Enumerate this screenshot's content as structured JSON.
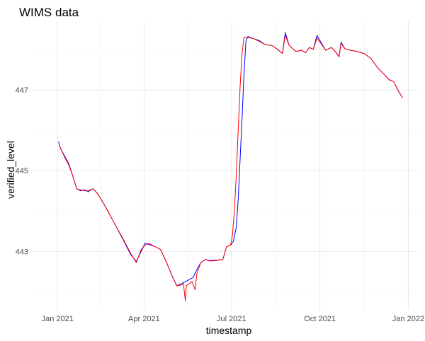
{
  "chart_data": {
    "type": "line",
    "title": "WIMS data",
    "xlabel": "timestamp",
    "ylabel": "verified_level",
    "x_axis": {
      "type": "date",
      "range": [
        "2020-12-06",
        "2022-01-11"
      ],
      "ticks": [
        {
          "date": "2021-01-01",
          "label": "Jan 2021"
        },
        {
          "date": "2021-04-01",
          "label": "Apr 2021"
        },
        {
          "date": "2021-07-01",
          "label": "Jul 2021"
        },
        {
          "date": "2021-10-01",
          "label": "Oct 2021"
        },
        {
          "date": "2022-01-01",
          "label": "Jan 2022"
        }
      ]
    },
    "y_axis": {
      "range": [
        441.55,
        448.7
      ],
      "ticks": [
        443,
        445,
        447
      ],
      "minor_ticks": [
        442,
        444,
        446,
        448
      ]
    },
    "grid": true,
    "legend": "none",
    "series": [
      {
        "color": "#0000ff",
        "points": [
          [
            "2021-01-02",
            445.72
          ],
          [
            "2021-01-04",
            445.55
          ],
          [
            "2021-01-08",
            445.38
          ],
          [
            "2021-01-13",
            445.15
          ],
          [
            "2021-01-17",
            444.85
          ],
          [
            "2021-01-21",
            444.55
          ],
          [
            "2021-01-25",
            444.5
          ],
          [
            "2021-01-29",
            444.52
          ],
          [
            "2021-02-02",
            444.48
          ],
          [
            "2021-02-07",
            444.55
          ],
          [
            "2021-02-12",
            444.42
          ],
          [
            "2021-02-20",
            444.1
          ],
          [
            "2021-03-01",
            443.7
          ],
          [
            "2021-03-10",
            443.3
          ],
          [
            "2021-03-18",
            442.92
          ],
          [
            "2021-03-24",
            442.75
          ],
          [
            "2021-03-29",
            443.0
          ],
          [
            "2021-04-02",
            443.2
          ],
          [
            "2021-04-06",
            443.17
          ],
          [
            "2021-04-12",
            443.12
          ],
          [
            "2021-04-18",
            443.05
          ],
          [
            "2021-04-24",
            442.75
          ],
          [
            "2021-04-30",
            442.4
          ],
          [
            "2021-05-05",
            442.15
          ],
          [
            "2021-05-10",
            442.2
          ],
          [
            "2021-05-14",
            442.25
          ],
          [
            "2021-05-18",
            442.3
          ],
          [
            "2021-05-22",
            442.35
          ],
          [
            "2021-05-26",
            442.55
          ],
          [
            "2021-05-30",
            442.72
          ],
          [
            "2021-06-04",
            442.8
          ],
          [
            "2021-06-08",
            442.77
          ],
          [
            "2021-06-15",
            442.78
          ],
          [
            "2021-06-22",
            442.8
          ],
          [
            "2021-06-26",
            443.12
          ],
          [
            "2021-06-30",
            443.15
          ],
          [
            "2021-07-03",
            443.25
          ],
          [
            "2021-07-06",
            443.6
          ],
          [
            "2021-07-08",
            444.3
          ],
          [
            "2021-07-10",
            445.3
          ],
          [
            "2021-07-12",
            446.3
          ],
          [
            "2021-07-14",
            447.4
          ],
          [
            "2021-07-16",
            448.2
          ],
          [
            "2021-07-18",
            448.32
          ],
          [
            "2021-07-24",
            448.27
          ],
          [
            "2021-07-30",
            448.22
          ],
          [
            "2021-08-05",
            448.12
          ],
          [
            "2021-08-12",
            448.1
          ],
          [
            "2021-08-18",
            448.0
          ],
          [
            "2021-08-23",
            447.9
          ],
          [
            "2021-08-26",
            448.42
          ],
          [
            "2021-08-30",
            448.1
          ],
          [
            "2021-09-06",
            447.95
          ],
          [
            "2021-09-12",
            447.98
          ],
          [
            "2021-09-16",
            447.92
          ],
          [
            "2021-09-20",
            448.05
          ],
          [
            "2021-09-24",
            448.0
          ],
          [
            "2021-09-28",
            448.35
          ],
          [
            "2021-10-02",
            448.18
          ],
          [
            "2021-10-07",
            447.98
          ],
          [
            "2021-10-13",
            448.05
          ],
          [
            "2021-10-17",
            447.95
          ],
          [
            "2021-10-21",
            447.82
          ],
          [
            "2021-10-23",
            448.18
          ],
          [
            "2021-10-27",
            448.02
          ],
          [
            "2021-11-02",
            447.98
          ],
          [
            "2021-11-09",
            447.95
          ],
          [
            "2021-11-16",
            447.9
          ],
          [
            "2021-11-23",
            447.78
          ],
          [
            "2021-11-30",
            447.55
          ],
          [
            "2021-12-07",
            447.38
          ],
          [
            "2021-12-12",
            447.25
          ],
          [
            "2021-12-17",
            447.2
          ],
          [
            "2021-12-21",
            447.0
          ],
          [
            "2021-12-26",
            446.8
          ]
        ]
      },
      {
        "color": "#ff0000",
        "points": [
          [
            "2021-01-03",
            445.62
          ],
          [
            "2021-01-08",
            445.35
          ],
          [
            "2021-01-13",
            445.12
          ],
          [
            "2021-01-17",
            444.85
          ],
          [
            "2021-01-21",
            444.55
          ],
          [
            "2021-01-25",
            444.52
          ],
          [
            "2021-01-29",
            444.5
          ],
          [
            "2021-02-02",
            444.5
          ],
          [
            "2021-02-07",
            444.55
          ],
          [
            "2021-02-12",
            444.42
          ],
          [
            "2021-02-20",
            444.1
          ],
          [
            "2021-03-01",
            443.7
          ],
          [
            "2021-03-10",
            443.32
          ],
          [
            "2021-03-18",
            442.95
          ],
          [
            "2021-03-24",
            442.72
          ],
          [
            "2021-03-29",
            443.05
          ],
          [
            "2021-04-02",
            443.15
          ],
          [
            "2021-04-06",
            443.2
          ],
          [
            "2021-04-12",
            443.12
          ],
          [
            "2021-04-18",
            443.05
          ],
          [
            "2021-04-24",
            442.75
          ],
          [
            "2021-04-30",
            442.4
          ],
          [
            "2021-05-05",
            442.15
          ],
          [
            "2021-05-08",
            442.15
          ],
          [
            "2021-05-12",
            442.2
          ],
          [
            "2021-05-14",
            441.77
          ],
          [
            "2021-05-15",
            442.15
          ],
          [
            "2021-05-18",
            442.2
          ],
          [
            "2021-05-21",
            442.25
          ],
          [
            "2021-05-24",
            442.05
          ],
          [
            "2021-05-26",
            442.45
          ],
          [
            "2021-05-30",
            442.72
          ],
          [
            "2021-06-04",
            442.8
          ],
          [
            "2021-06-08",
            442.76
          ],
          [
            "2021-06-15",
            442.77
          ],
          [
            "2021-06-22",
            442.8
          ],
          [
            "2021-06-26",
            443.12
          ],
          [
            "2021-06-30",
            443.15
          ],
          [
            "2021-07-02",
            443.4
          ],
          [
            "2021-07-04",
            444.0
          ],
          [
            "2021-07-06",
            444.9
          ],
          [
            "2021-07-08",
            446.0
          ],
          [
            "2021-07-10",
            447.1
          ],
          [
            "2021-07-12",
            447.9
          ],
          [
            "2021-07-14",
            448.3
          ],
          [
            "2021-07-18",
            448.3
          ],
          [
            "2021-07-24",
            448.27
          ],
          [
            "2021-07-30",
            448.2
          ],
          [
            "2021-08-05",
            448.12
          ],
          [
            "2021-08-12",
            448.1
          ],
          [
            "2021-08-18",
            448.0
          ],
          [
            "2021-08-23",
            447.9
          ],
          [
            "2021-08-26",
            448.35
          ],
          [
            "2021-08-30",
            448.1
          ],
          [
            "2021-09-06",
            447.95
          ],
          [
            "2021-09-12",
            447.98
          ],
          [
            "2021-09-16",
            447.92
          ],
          [
            "2021-09-20",
            448.05
          ],
          [
            "2021-09-24",
            448.0
          ],
          [
            "2021-09-28",
            448.28
          ],
          [
            "2021-10-02",
            448.15
          ],
          [
            "2021-10-07",
            447.98
          ],
          [
            "2021-10-13",
            448.05
          ],
          [
            "2021-10-17",
            447.95
          ],
          [
            "2021-10-21",
            447.82
          ],
          [
            "2021-10-23",
            448.15
          ],
          [
            "2021-10-27",
            448.02
          ],
          [
            "2021-11-02",
            447.98
          ],
          [
            "2021-11-09",
            447.95
          ],
          [
            "2021-11-16",
            447.9
          ],
          [
            "2021-11-23",
            447.78
          ],
          [
            "2021-11-30",
            447.55
          ],
          [
            "2021-12-07",
            447.38
          ],
          [
            "2021-12-12",
            447.25
          ],
          [
            "2021-12-17",
            447.2
          ],
          [
            "2021-12-21",
            447.0
          ],
          [
            "2021-12-26",
            446.8
          ]
        ]
      }
    ]
  }
}
